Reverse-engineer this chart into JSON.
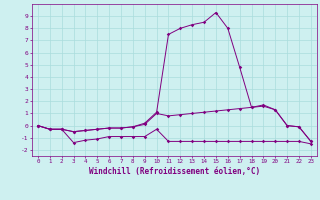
{
  "x": [
    0,
    1,
    2,
    3,
    4,
    5,
    6,
    7,
    8,
    9,
    10,
    11,
    12,
    13,
    14,
    15,
    16,
    17,
    18,
    19,
    20,
    21,
    22,
    23
  ],
  "line1": [
    0,
    -0.3,
    -0.3,
    -1.4,
    -1.2,
    -1.1,
    -0.9,
    -0.9,
    -0.9,
    -0.9,
    -0.3,
    -1.3,
    -1.3,
    -1.3,
    -1.3,
    -1.3,
    -1.3,
    -1.3,
    -1.3,
    -1.3,
    -1.3,
    -1.3,
    -1.3,
    -1.5
  ],
  "line2": [
    0,
    -0.3,
    -0.3,
    -0.5,
    -0.4,
    -0.3,
    -0.2,
    -0.2,
    -0.1,
    0.1,
    1.0,
    0.8,
    0.9,
    1.0,
    1.1,
    1.2,
    1.3,
    1.4,
    1.5,
    1.6,
    1.3,
    0.0,
    -0.1,
    -1.3
  ],
  "line3": [
    0,
    -0.3,
    -0.3,
    -0.5,
    -0.4,
    -0.3,
    -0.2,
    -0.2,
    -0.1,
    0.2,
    1.1,
    7.5,
    8.0,
    8.3,
    8.5,
    9.3,
    8.0,
    4.8,
    1.5,
    1.7,
    1.3,
    0.0,
    -0.1,
    -1.3
  ],
  "background_color": "#cef0f0",
  "grid_color": "#aadddd",
  "line_color": "#800080",
  "xlabel": "Windchill (Refroidissement éolien,°C)",
  "ylim": [
    -2.5,
    10
  ],
  "xlim": [
    -0.5,
    23.5
  ],
  "yticks": [
    -2,
    -1,
    0,
    1,
    2,
    3,
    4,
    5,
    6,
    7,
    8,
    9
  ],
  "xticks": [
    0,
    1,
    2,
    3,
    4,
    5,
    6,
    7,
    8,
    9,
    10,
    11,
    12,
    13,
    14,
    15,
    16,
    17,
    18,
    19,
    20,
    21,
    22,
    23
  ],
  "figsize": [
    3.2,
    2.0
  ],
  "dpi": 100
}
